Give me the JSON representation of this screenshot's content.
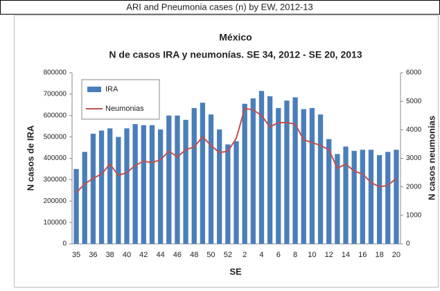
{
  "header": "ARI and Pneumonia cases (n) by EW, 2012-13",
  "chart_data": {
    "type": "bar-line",
    "title": "México",
    "subtitle": "N de casos IRA y neumonías. SE 34, 2012 - SE 20, 2013",
    "x_label": "SE",
    "y_label": "N casos de IRA",
    "y2_label": "N casos neumonias",
    "categories": [
      "35",
      null,
      "36",
      null,
      "38",
      null,
      "40",
      null,
      "42",
      null,
      "44",
      null,
      "46",
      null,
      "48",
      null,
      "50",
      null,
      "52",
      null,
      "2",
      null,
      "4",
      null,
      "6",
      null,
      "8",
      null,
      "10",
      null,
      "12",
      null,
      "14",
      null,
      "16",
      null,
      "18",
      null,
      "20"
    ],
    "series": [
      {
        "name": "IRA",
        "color": "#4a7ebb",
        "values": [
          350000,
          430000,
          515000,
          530000,
          540000,
          500000,
          540000,
          560000,
          555000,
          555000,
          535000,
          600000,
          600000,
          580000,
          635000,
          660000,
          605000,
          535000,
          465000,
          480000,
          655000,
          680000,
          715000,
          690000,
          635000,
          670000,
          685000,
          630000,
          635000,
          605000,
          490000,
          420000,
          455000,
          435000,
          440000,
          440000,
          415000,
          430000,
          440000
        ]
      },
      {
        "name": "Neumonias",
        "color": "#c0504d",
        "axis": "y2",
        "values": [
          1800,
          2100,
          2300,
          2450,
          2800,
          2400,
          2500,
          2750,
          2900,
          2850,
          2950,
          3250,
          3050,
          3300,
          3400,
          3750,
          3450,
          3200,
          3250,
          3700,
          4750,
          4700,
          4500,
          4100,
          4250,
          4250,
          4200,
          3650,
          3550,
          3450,
          3300,
          2650,
          2800,
          2550,
          2450,
          2150,
          2000,
          2050,
          2300
        ]
      }
    ],
    "ylim": [
      0,
      800000
    ],
    "yticks": [
      0,
      100000,
      200000,
      300000,
      400000,
      500000,
      600000,
      700000,
      800000
    ],
    "y2lim": [
      0,
      6000
    ],
    "y2ticks": [
      0,
      1000,
      2000,
      3000,
      4000,
      5000,
      6000
    ],
    "grid": false,
    "legend": "upper left"
  }
}
